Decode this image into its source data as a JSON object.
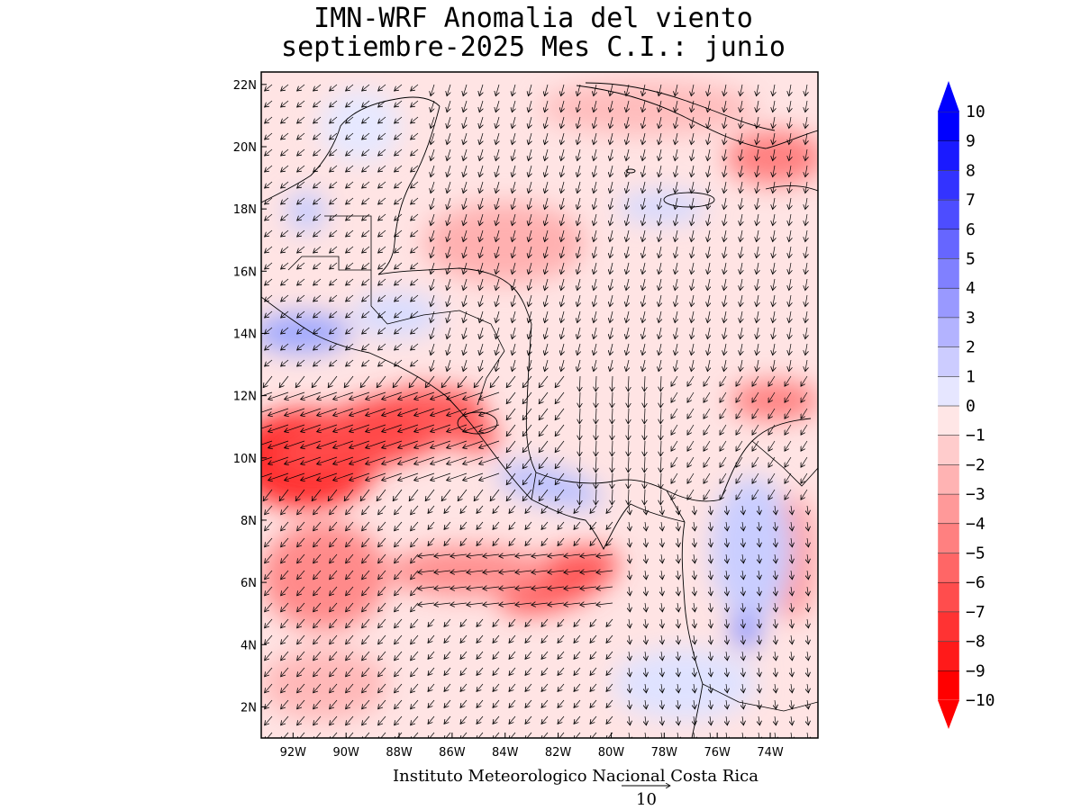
{
  "title": {
    "line1": "IMN-WRF Anomalia del viento",
    "line2": "septiembre-2025 Mes C.I.: junio"
  },
  "footer": {
    "credit": "Instituto Meteorologico Nacional Costa Rica",
    "reference_vector_label": "10"
  },
  "map": {
    "x_ticks": [
      "92W",
      "90W",
      "88W",
      "86W",
      "84W",
      "82W",
      "80W",
      "78W",
      "76W",
      "74W"
    ],
    "y_ticks": [
      "22N",
      "20N",
      "18N",
      "16N",
      "14N",
      "12N",
      "10N",
      "8N",
      "6N",
      "4N",
      "2N"
    ],
    "lon_range": [
      -93.2,
      -72.2
    ],
    "lat_range": [
      1.0,
      22.4
    ],
    "land_color": "#ffffff",
    "border_color": "#000000"
  },
  "colorbar": {
    "labels": [
      "10",
      "9",
      "8",
      "7",
      "6",
      "5",
      "4",
      "3",
      "2",
      "1",
      "0",
      "−1",
      "−2",
      "−3",
      "−4",
      "−5",
      "−6",
      "−7",
      "−8",
      "−9",
      "−10"
    ],
    "colors": [
      "#0000ff",
      "#1a1aff",
      "#3333ff",
      "#4d4dff",
      "#6666ff",
      "#8080ff",
      "#9999ff",
      "#b3b3ff",
      "#ccccff",
      "#e6e6ff",
      "#ffe6e6",
      "#ffcccc",
      "#ffb3b3",
      "#ff9999",
      "#ff8080",
      "#ff6666",
      "#ff4d4d",
      "#ff3333",
      "#ff1a1a",
      "#ff0000"
    ],
    "max_color": "#0000ff",
    "min_color": "#ff0000"
  }
}
